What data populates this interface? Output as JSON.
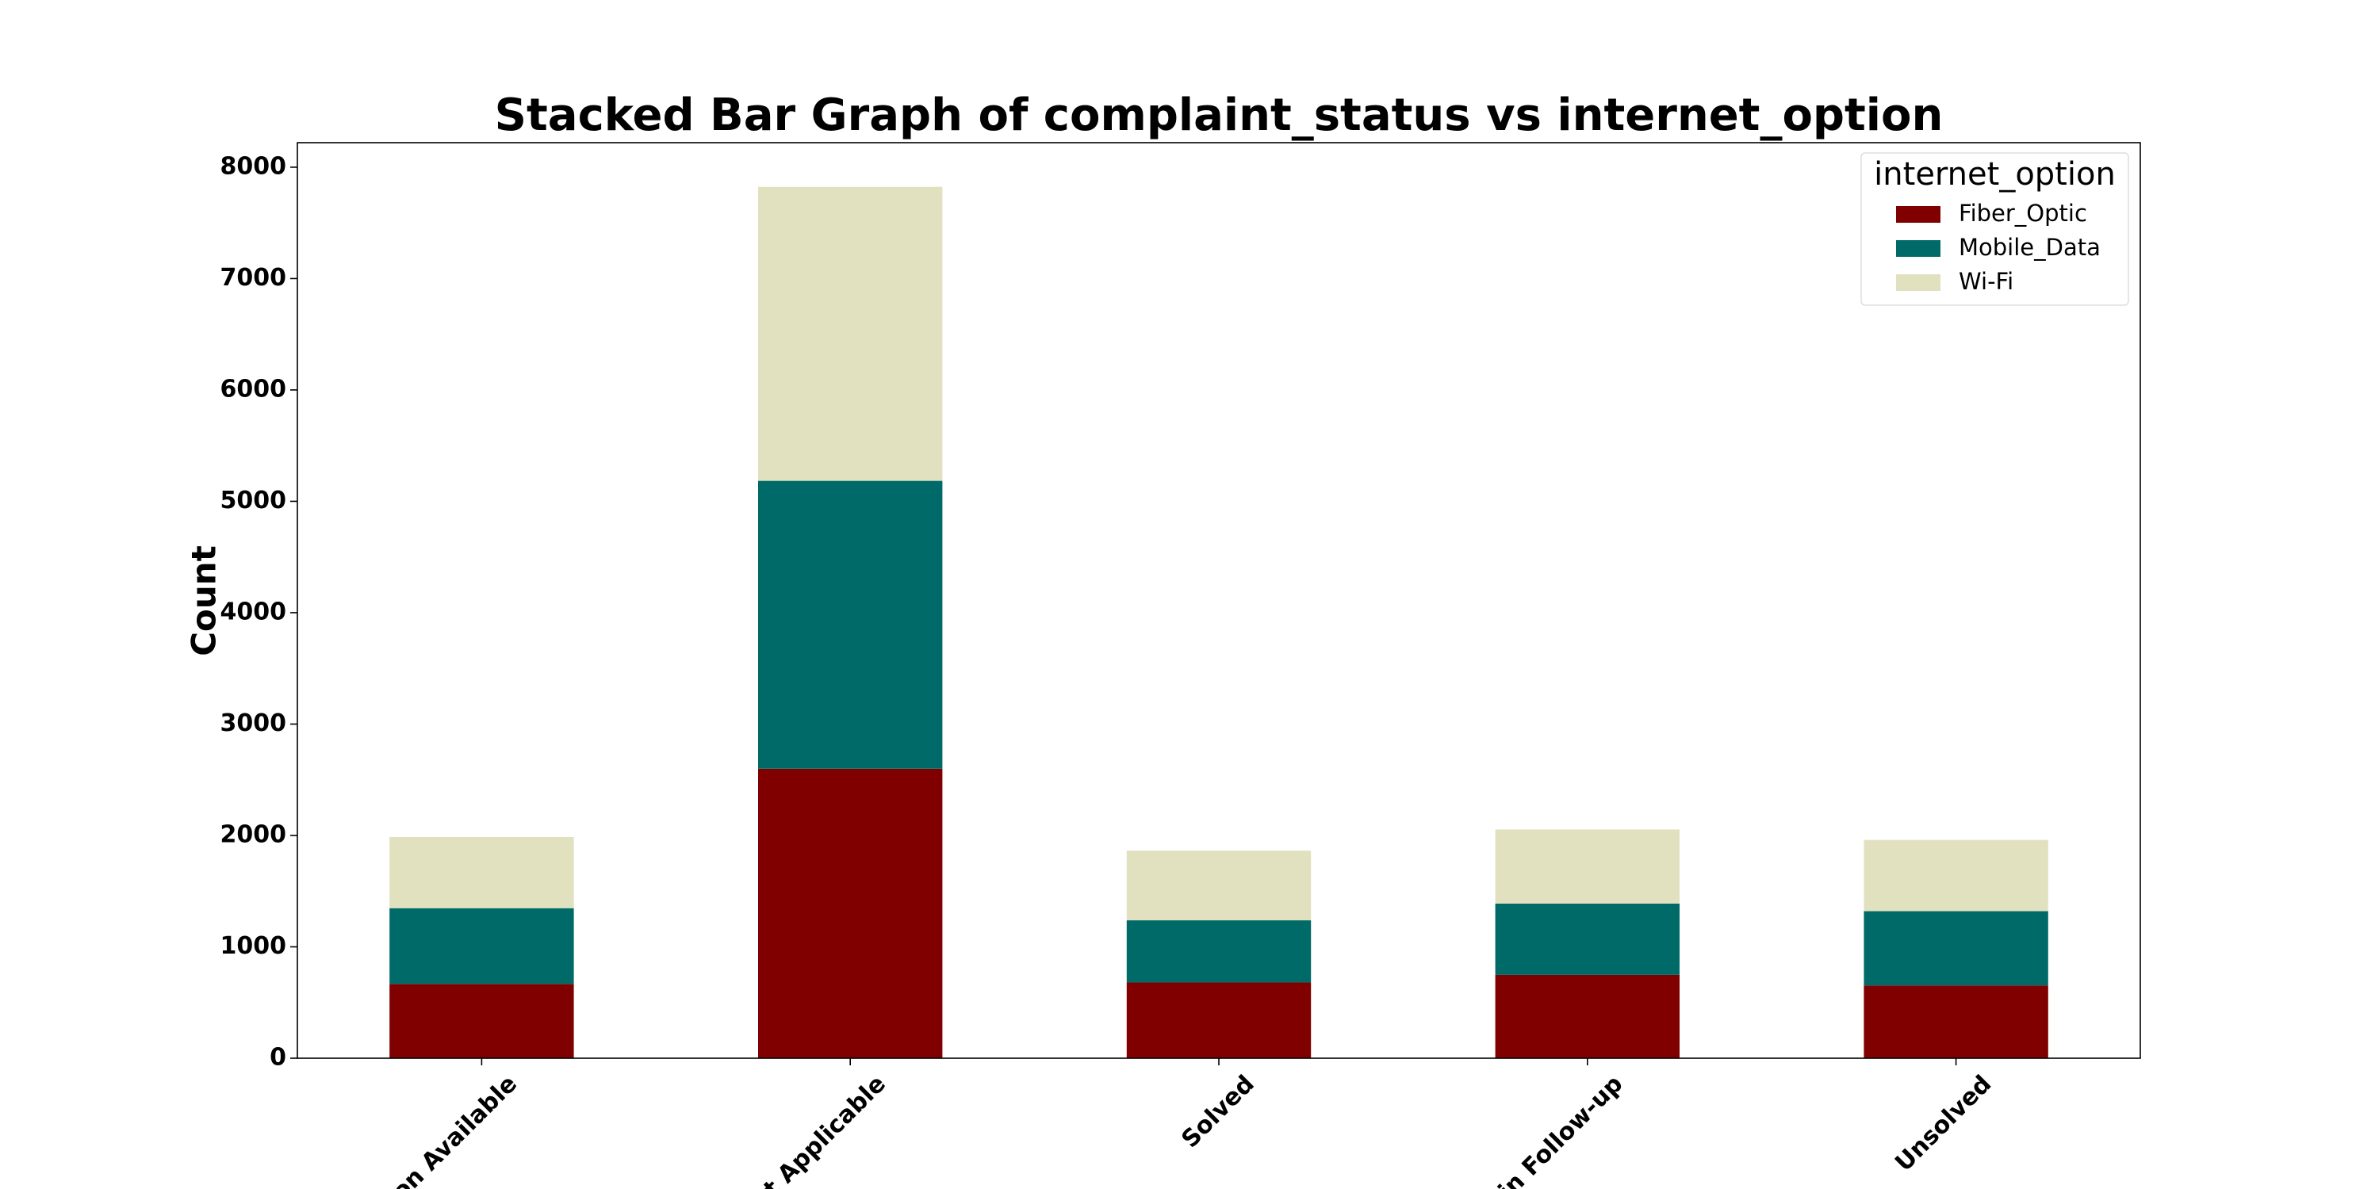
{
  "chart_data": {
    "type": "stacked_bar",
    "title": "Stacked Bar Graph of complaint_status vs internet_option",
    "y_label": "Count",
    "categories": [
      "tion Available",
      "ot Applicable",
      "Solved",
      "d in Follow-up",
      "Unsolved"
    ],
    "series": [
      {
        "name": "Fiber_Optic",
        "color": "#800000",
        "values": [
          667,
          2599,
          680,
          748,
          653
        ]
      },
      {
        "name": "Mobile_Data",
        "color": "#006a68",
        "values": [
          680,
          2585,
          558,
          640,
          667
        ]
      },
      {
        "name": "Wi-Fi",
        "color": "#e1e1c0",
        "values": [
          639,
          2639,
          626,
          666,
          639
        ]
      }
    ],
    "legend_title": "internet_option",
    "legend": "upper right",
    "ylim": [
      0,
      8220
    ],
    "yticks": [
      0,
      1000,
      2000,
      3000,
      4000,
      5000,
      6000,
      7000,
      8000
    ]
  }
}
